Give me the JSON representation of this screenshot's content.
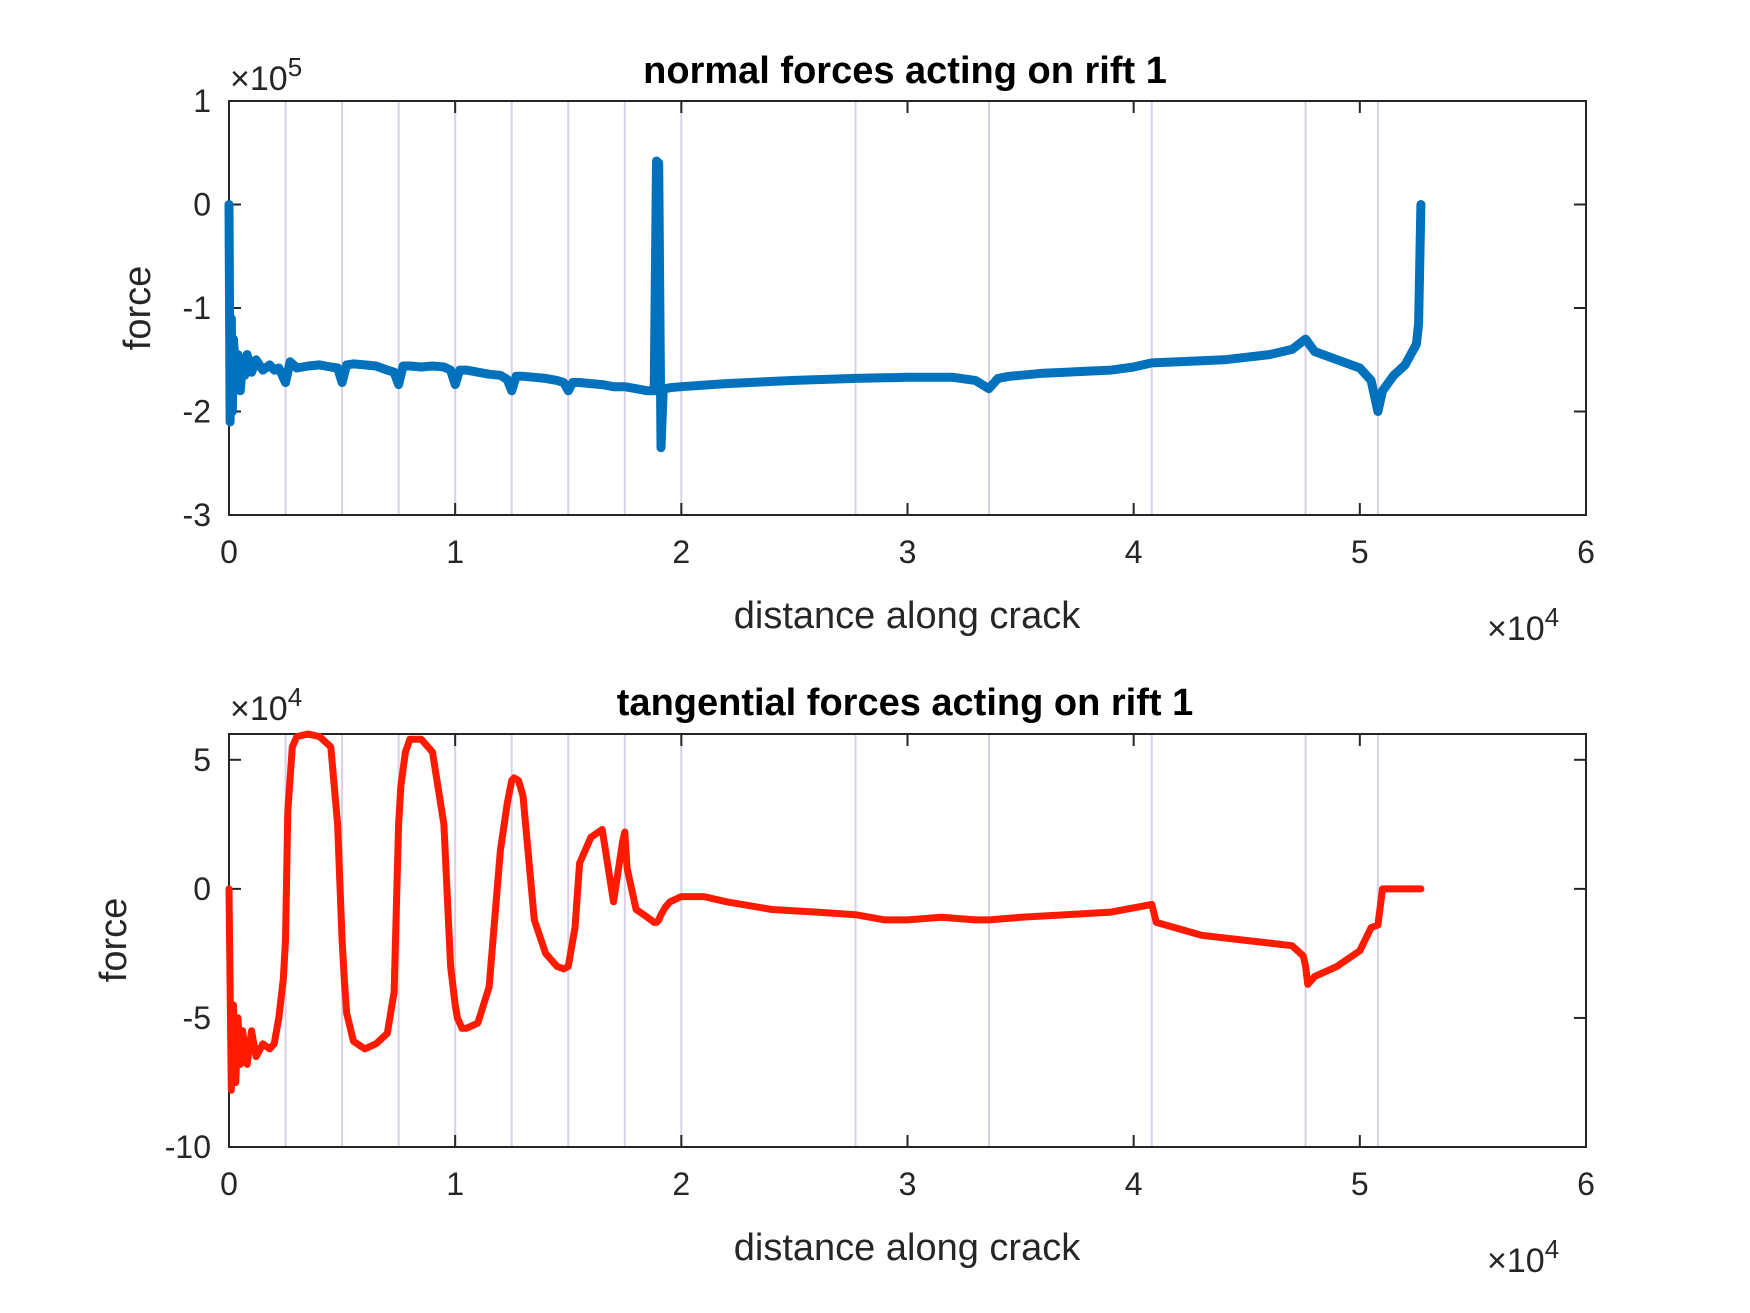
{
  "chart_data": [
    {
      "type": "line",
      "title": "normal forces acting on rift 1",
      "xlabel": "distance along crack",
      "ylabel": "force",
      "x_exponent_label": "×10",
      "x_exponent": "4",
      "y_exponent_label": "×10",
      "y_exponent": "5",
      "xlim": [
        0,
        6
      ],
      "ylim": [
        -3,
        1
      ],
      "xticks": [
        "0",
        "1",
        "2",
        "3",
        "4",
        "5",
        "6"
      ],
      "yticks": [
        "-3",
        "-2",
        "-1",
        "0",
        "1"
      ],
      "grid": false,
      "vertical_markers": [
        0.25,
        0.5,
        0.75,
        1.0,
        1.25,
        1.5,
        1.75,
        2.0,
        2.77,
        3.36,
        4.08,
        4.76,
        5.08
      ],
      "marker_color": "#d9cfe8",
      "line_color": "#0072bd",
      "series": [
        {
          "x": [
            0.0,
            0.005,
            0.01,
            0.015,
            0.02,
            0.03,
            0.04,
            0.05,
            0.06,
            0.07,
            0.08,
            0.1,
            0.12,
            0.15,
            0.18,
            0.2,
            0.22,
            0.25,
            0.27,
            0.3,
            0.35,
            0.4,
            0.45,
            0.48,
            0.5,
            0.52,
            0.55,
            0.6,
            0.65,
            0.7,
            0.73,
            0.75,
            0.77,
            0.8,
            0.85,
            0.9,
            0.95,
            0.98,
            1.0,
            1.02,
            1.05,
            1.1,
            1.15,
            1.2,
            1.23,
            1.25,
            1.27,
            1.3,
            1.35,
            1.4,
            1.45,
            1.48,
            1.5,
            1.52,
            1.55,
            1.6,
            1.65,
            1.7,
            1.75,
            1.8,
            1.85,
            1.88,
            1.89,
            1.9,
            1.91,
            1.92,
            1.93,
            1.95,
            2.0,
            2.2,
            2.5,
            2.77,
            3.0,
            3.2,
            3.3,
            3.36,
            3.4,
            3.45,
            3.5,
            3.6,
            3.7,
            3.8,
            3.9,
            4.0,
            4.08,
            4.2,
            4.4,
            4.6,
            4.7,
            4.76,
            4.8,
            4.9,
            5.0,
            5.05,
            5.08,
            5.1,
            5.15,
            5.2,
            5.25,
            5.26,
            5.27
          ],
          "y": [
            0.0,
            -2.1,
            -1.1,
            -2.0,
            -1.3,
            -1.7,
            -1.45,
            -1.8,
            -1.5,
            -1.65,
            -1.45,
            -1.62,
            -1.5,
            -1.6,
            -1.55,
            -1.6,
            -1.58,
            -1.72,
            -1.52,
            -1.58,
            -1.56,
            -1.55,
            -1.57,
            -1.58,
            -1.72,
            -1.55,
            -1.54,
            -1.55,
            -1.56,
            -1.6,
            -1.62,
            -1.74,
            -1.56,
            -1.56,
            -1.57,
            -1.56,
            -1.57,
            -1.6,
            -1.74,
            -1.6,
            -1.6,
            -1.62,
            -1.64,
            -1.65,
            -1.69,
            -1.8,
            -1.66,
            -1.66,
            -1.67,
            -1.68,
            -1.7,
            -1.72,
            -1.8,
            -1.72,
            -1.72,
            -1.73,
            -1.74,
            -1.76,
            -1.76,
            -1.78,
            -1.8,
            -1.8,
            0.42,
            0.4,
            -2.35,
            -1.8,
            -1.78,
            -1.77,
            -1.76,
            -1.73,
            -1.7,
            -1.68,
            -1.67,
            -1.67,
            -1.7,
            -1.78,
            -1.68,
            -1.66,
            -1.65,
            -1.63,
            -1.62,
            -1.61,
            -1.6,
            -1.57,
            -1.53,
            -1.52,
            -1.5,
            -1.45,
            -1.4,
            -1.3,
            -1.42,
            -1.5,
            -1.58,
            -1.7,
            -2.0,
            -1.8,
            -1.65,
            -1.55,
            -1.35,
            -1.15,
            0.0
          ]
        }
      ]
    },
    {
      "type": "line",
      "title": "tangential forces acting on rift 1",
      "xlabel": "distance along crack",
      "ylabel": "force",
      "x_exponent_label": "×10",
      "x_exponent": "4",
      "y_exponent_label": "×10",
      "y_exponent": "4",
      "xlim": [
        0,
        6
      ],
      "ylim": [
        -10,
        6
      ],
      "xticks": [
        "0",
        "1",
        "2",
        "3",
        "4",
        "5",
        "6"
      ],
      "yticks": [
        "-10",
        "-5",
        "0",
        "5"
      ],
      "grid": false,
      "vertical_markers": [
        0.25,
        0.5,
        0.75,
        1.0,
        1.25,
        1.5,
        1.75,
        2.0,
        2.77,
        3.36,
        4.08,
        4.76,
        5.08
      ],
      "marker_color": "#d9cfe8",
      "line_color": "#ff1a00",
      "series": [
        {
          "x": [
            0.0,
            0.01,
            0.02,
            0.03,
            0.04,
            0.05,
            0.06,
            0.08,
            0.1,
            0.12,
            0.15,
            0.18,
            0.2,
            0.22,
            0.24,
            0.25,
            0.26,
            0.28,
            0.3,
            0.35,
            0.4,
            0.45,
            0.48,
            0.5,
            0.51,
            0.52,
            0.55,
            0.6,
            0.65,
            0.7,
            0.73,
            0.75,
            0.76,
            0.78,
            0.8,
            0.85,
            0.9,
            0.95,
            0.98,
            1.0,
            1.01,
            1.03,
            1.05,
            1.1,
            1.15,
            1.2,
            1.23,
            1.25,
            1.26,
            1.28,
            1.3,
            1.35,
            1.4,
            1.45,
            1.48,
            1.5,
            1.51,
            1.53,
            1.55,
            1.6,
            1.65,
            1.7,
            1.74,
            1.75,
            1.76,
            1.8,
            1.85,
            1.88,
            1.89,
            1.9,
            1.91,
            1.93,
            1.95,
            2.0,
            2.1,
            2.2,
            2.4,
            2.6,
            2.77,
            2.9,
            3.0,
            3.15,
            3.3,
            3.36,
            3.5,
            3.7,
            3.9,
            4.08,
            4.1,
            4.3,
            4.5,
            4.7,
            4.75,
            4.76,
            4.77,
            4.8,
            4.9,
            5.0,
            5.05,
            5.08,
            5.1,
            5.15,
            5.2,
            5.25,
            5.26,
            5.27
          ],
          "y": [
            0.0,
            -7.8,
            -4.5,
            -7.5,
            -5.0,
            -6.8,
            -5.5,
            -6.8,
            -5.5,
            -6.5,
            -6.0,
            -6.2,
            -6.0,
            -5.0,
            -3.5,
            -2.0,
            3.0,
            5.5,
            5.9,
            6.0,
            5.9,
            5.5,
            2.5,
            -2.0,
            -3.5,
            -4.8,
            -5.9,
            -6.2,
            -6.0,
            -5.6,
            -4.0,
            2.5,
            4.0,
            5.3,
            5.8,
            5.8,
            5.3,
            2.5,
            -3.0,
            -4.5,
            -5.0,
            -5.4,
            -5.4,
            -5.2,
            -3.8,
            1.5,
            3.3,
            4.2,
            4.3,
            4.2,
            3.6,
            -1.2,
            -2.5,
            -3.0,
            -3.1,
            -3.0,
            -2.5,
            -1.5,
            1.0,
            2.0,
            2.3,
            -0.5,
            1.8,
            2.2,
            0.8,
            -0.8,
            -1.1,
            -1.3,
            -1.3,
            -1.2,
            -1.0,
            -0.7,
            -0.5,
            -0.3,
            -0.3,
            -0.5,
            -0.8,
            -0.9,
            -1.0,
            -1.2,
            -1.2,
            -1.1,
            -1.2,
            -1.2,
            -1.1,
            -1.0,
            -0.9,
            -0.6,
            -1.3,
            -1.8,
            -2.0,
            -2.2,
            -2.6,
            -3.0,
            -3.7,
            -3.4,
            -3.0,
            -2.4,
            -1.5,
            -1.4,
            0.0,
            0.0,
            0.0,
            0.0,
            0.0,
            0.0
          ]
        }
      ]
    }
  ]
}
